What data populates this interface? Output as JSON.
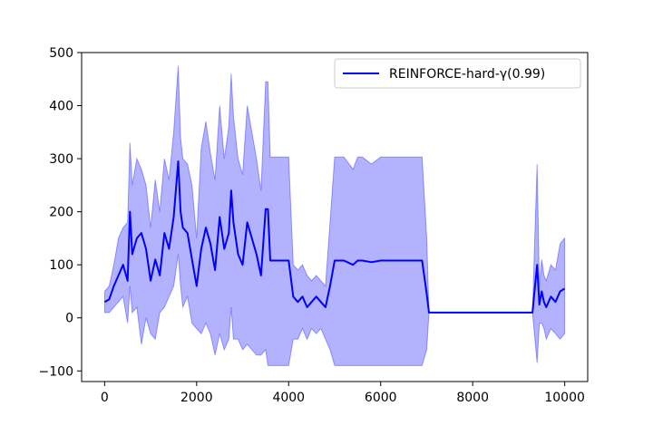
{
  "chart_data": {
    "type": "line",
    "title": "",
    "xlabel": "",
    "ylabel": "",
    "xlim": [
      -500,
      10500
    ],
    "ylim": [
      -120,
      500
    ],
    "x_ticks": [
      0,
      2000,
      4000,
      6000,
      8000,
      10000
    ],
    "y_ticks": [
      -100,
      0,
      100,
      200,
      300,
      400,
      500
    ],
    "x_tick_labels": [
      "0",
      "2000",
      "4000",
      "6000",
      "8000",
      "10000"
    ],
    "y_tick_labels": [
      "−100",
      "0",
      "100",
      "200",
      "300",
      "400",
      "500"
    ],
    "grid": false,
    "legend_position": "top-right",
    "colors": {
      "line": "#0000ff",
      "band": "#0000ff"
    },
    "series": [
      {
        "name": "REINFORCE-hard-γ(0.99)",
        "x": [
          0,
          100,
          200,
          300,
          400,
          500,
          550,
          600,
          700,
          800,
          900,
          1000,
          1100,
          1200,
          1300,
          1400,
          1500,
          1600,
          1650,
          1700,
          1800,
          1900,
          2000,
          2100,
          2200,
          2300,
          2400,
          2500,
          2600,
          2700,
          2750,
          2800,
          2900,
          3000,
          3100,
          3200,
          3300,
          3400,
          3500,
          3550,
          3600,
          3700,
          3800,
          3900,
          4000,
          4100,
          4200,
          4300,
          4400,
          4500,
          4600,
          4700,
          4800,
          4900,
          5000,
          5200,
          5400,
          5500,
          5600,
          5800,
          6000,
          6200,
          6400,
          6600,
          6800,
          6900,
          7000,
          7050,
          7500,
          8000,
          8500,
          9000,
          9300,
          9400,
          9450,
          9500,
          9550,
          9600,
          9700,
          9800,
          9900,
          10000
        ],
        "y": [
          30,
          35,
          60,
          80,
          100,
          70,
          200,
          120,
          150,
          160,
          130,
          70,
          110,
          80,
          160,
          130,
          190,
          295,
          200,
          170,
          160,
          110,
          60,
          130,
          170,
          140,
          90,
          190,
          130,
          160,
          240,
          180,
          120,
          100,
          180,
          150,
          120,
          80,
          205,
          205,
          108,
          108,
          108,
          108,
          108,
          40,
          30,
          40,
          20,
          30,
          40,
          30,
          20,
          60,
          108,
          108,
          100,
          108,
          108,
          105,
          108,
          108,
          108,
          108,
          108,
          108,
          45,
          10,
          10,
          10,
          10,
          10,
          10,
          100,
          25,
          50,
          30,
          20,
          40,
          30,
          50,
          55
        ],
        "lower": [
          10,
          10,
          20,
          30,
          40,
          -10,
          60,
          10,
          20,
          -50,
          0,
          -30,
          -40,
          10,
          20,
          40,
          60,
          120,
          60,
          20,
          40,
          -10,
          -20,
          -30,
          -10,
          -30,
          -70,
          -30,
          -60,
          -40,
          20,
          -40,
          -40,
          -60,
          -50,
          -60,
          -70,
          -70,
          -60,
          -90,
          -90,
          -90,
          -90,
          -90,
          -90,
          -40,
          -40,
          -20,
          -40,
          -20,
          -30,
          -20,
          -40,
          -60,
          -90,
          -90,
          -90,
          -90,
          -90,
          -90,
          -90,
          -90,
          -90,
          -90,
          -90,
          -90,
          -60,
          10,
          10,
          10,
          10,
          10,
          10,
          -85,
          -10,
          -10,
          -20,
          -40,
          -20,
          -30,
          -40,
          -30
        ],
        "upper": [
          50,
          60,
          100,
          150,
          170,
          180,
          330,
          250,
          300,
          280,
          250,
          170,
          260,
          200,
          300,
          260,
          350,
          475,
          340,
          300,
          290,
          250,
          150,
          320,
          370,
          310,
          260,
          400,
          300,
          360,
          460,
          380,
          300,
          270,
          400,
          350,
          300,
          240,
          445,
          445,
          303,
          303,
          303,
          303,
          303,
          100,
          90,
          100,
          80,
          70,
          80,
          70,
          60,
          180,
          303,
          303,
          280,
          303,
          303,
          290,
          303,
          303,
          303,
          303,
          303,
          303,
          150,
          10,
          10,
          10,
          10,
          10,
          10,
          290,
          60,
          110,
          80,
          70,
          100,
          90,
          140,
          150
        ]
      }
    ]
  }
}
